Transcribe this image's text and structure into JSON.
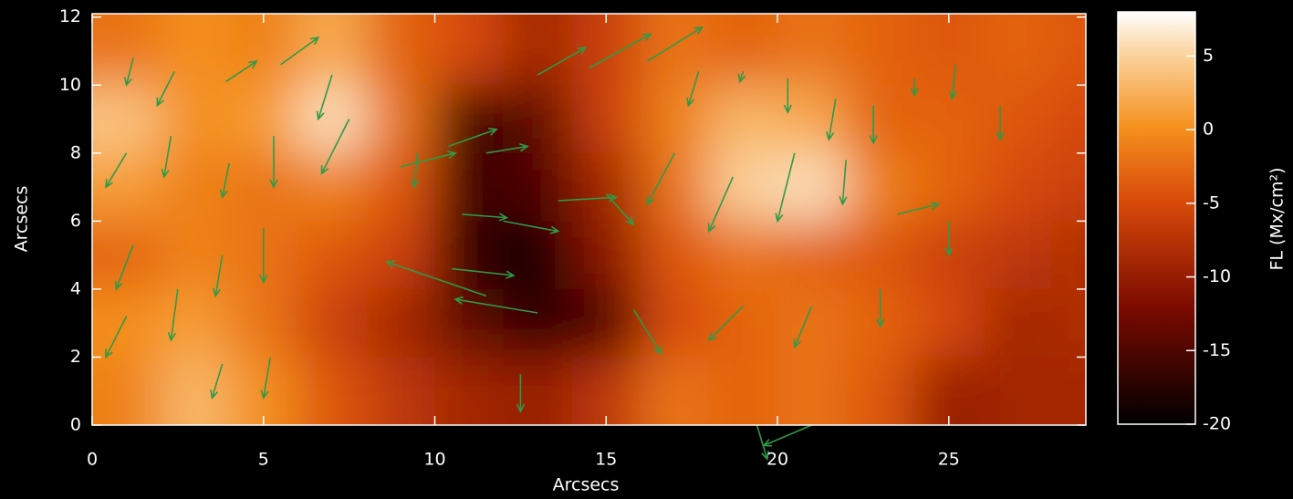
{
  "chart_data": {
    "type": "heatmap-vector",
    "xlabel": "Arcsecs",
    "ylabel": "Arcsecs",
    "colorbar_label": "FL (Mx/cm²)",
    "xlim": [
      0,
      29
    ],
    "ylim": [
      0,
      12.1
    ],
    "xticks": [
      0,
      5,
      10,
      15,
      20,
      25
    ],
    "yticks": [
      0,
      2,
      4,
      6,
      8,
      10,
      12
    ],
    "clim": [
      -20,
      8
    ],
    "cticks": [
      -20,
      -15,
      -10,
      -5,
      0,
      5
    ],
    "x": [
      1,
      3,
      5,
      7,
      9,
      11,
      13,
      15,
      17,
      19,
      21,
      23,
      25,
      27,
      29
    ],
    "y": [
      11,
      9,
      7,
      5,
      3,
      1
    ],
    "z": [
      [
        -2,
        0,
        -1,
        2,
        -3,
        -5,
        -9,
        -6,
        -2,
        -3,
        -2,
        -3,
        -4,
        -3,
        -4
      ],
      [
        4,
        0,
        1,
        6,
        -2,
        -16,
        -14,
        -6,
        -1,
        3,
        2,
        -3,
        -3,
        -4,
        -5
      ],
      [
        1,
        -1,
        -2,
        -1,
        -4,
        -16,
        -15,
        -9,
        -2,
        5,
        6,
        -1,
        -3,
        -5,
        -6
      ],
      [
        -3,
        -1,
        -2,
        -4,
        -6,
        -17,
        -19,
        -11,
        -4,
        -2,
        -3,
        -4,
        -6,
        -7,
        -8
      ],
      [
        0,
        1,
        -2,
        -6,
        -9,
        -14,
        -17,
        -15,
        -5,
        -3,
        -2,
        -3,
        -5,
        -9,
        -8
      ],
      [
        -1,
        3,
        0,
        -4,
        -7,
        -9,
        -10,
        -7,
        -2,
        -3,
        -2,
        -4,
        -10,
        -9,
        -9
      ]
    ],
    "arrow_color": "#2f9a47",
    "arrows": {
      "x": [
        1.2,
        2.4,
        3.9,
        5.5,
        7.0,
        9.0,
        10.4,
        11.5,
        13.0,
        14.5,
        16.2,
        17.7,
        19.0,
        20.3,
        21.7,
        22.8,
        24.0,
        25.2,
        26.5,
        1.0,
        2.3,
        4.0,
        5.3,
        7.5,
        9.5,
        10.8,
        12.0,
        13.6,
        15.0,
        17.0,
        18.7,
        20.5,
        22.0,
        23.5,
        25.0,
        1.2,
        2.5,
        3.8,
        5.0,
        10.5,
        11.5,
        13.0,
        15.8,
        19.0,
        21.0,
        23.0,
        1.0,
        3.8,
        5.2,
        12.5,
        19.4,
        21.0
      ],
      "y": [
        10.8,
        10.4,
        10.1,
        10.6,
        10.3,
        7.6,
        8.2,
        8.0,
        10.3,
        10.5,
        10.7,
        10.4,
        10.4,
        10.2,
        9.6,
        9.4,
        10.2,
        10.6,
        9.4,
        8.0,
        8.5,
        7.7,
        8.5,
        9.0,
        8.0,
        6.2,
        6.0,
        6.6,
        6.8,
        8.0,
        7.3,
        8.0,
        7.8,
        6.2,
        6.0,
        5.3,
        4.0,
        5.0,
        5.8,
        4.6,
        3.8,
        3.3,
        3.4,
        3.5,
        3.5,
        4.0,
        3.2,
        1.8,
        2.0,
        1.5,
        0.0,
        0.0
      ],
      "u": [
        -0.2,
        -0.5,
        0.9,
        1.1,
        -0.4,
        1.6,
        1.4,
        1.2,
        1.4,
        1.8,
        1.6,
        -0.3,
        -0.1,
        0.0,
        -0.2,
        0.0,
        0.0,
        -0.1,
        0.0,
        -0.6,
        -0.2,
        -0.2,
        0.0,
        -0.8,
        -0.1,
        1.3,
        1.6,
        1.7,
        0.8,
        -0.8,
        -0.7,
        -0.5,
        -0.1,
        1.2,
        0.0,
        -0.5,
        -0.2,
        -0.2,
        0.0,
        1.8,
        -2.9,
        -2.4,
        0.8,
        -1.0,
        -0.5,
        0.0,
        -0.6,
        -0.3,
        -0.2,
        0.0,
        0.3,
        -1.4
      ],
      "v": [
        -0.8,
        -1.0,
        0.6,
        0.8,
        -1.3,
        0.4,
        0.5,
        0.2,
        0.8,
        1.0,
        1.0,
        -1.0,
        -0.3,
        -1.0,
        -1.2,
        -1.1,
        -0.5,
        -1.0,
        -1.0,
        -1.0,
        -1.2,
        -1.0,
        -1.5,
        -1.6,
        -1.0,
        -0.1,
        -0.3,
        0.1,
        -0.9,
        -1.5,
        -1.6,
        -2.0,
        -1.3,
        0.3,
        -1.0,
        -1.3,
        -1.5,
        -1.2,
        -1.6,
        -0.2,
        1.0,
        0.4,
        -1.3,
        -1.0,
        -1.2,
        -1.1,
        -1.2,
        -1.0,
        -1.2,
        -1.1,
        -1.0,
        -0.6
      ]
    }
  }
}
